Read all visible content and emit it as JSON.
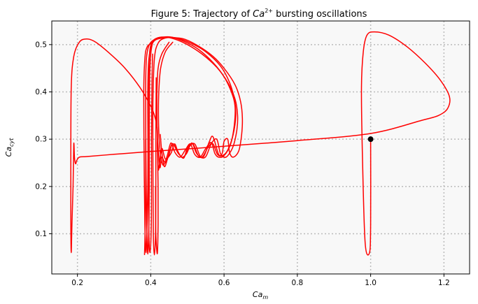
{
  "chart_data": {
    "type": "line",
    "title_prefix": "Figure 5: Trajectory of ",
    "title_math_base": "Ca",
    "title_math_sup": "2+",
    "title_suffix": " bursting oscillations",
    "xlabel_base": "Ca",
    "xlabel_sub": "m",
    "ylabel_base": "Ca",
    "ylabel_sub": "cyt",
    "xlim": [
      0.13,
      1.27
    ],
    "ylim": [
      0.015,
      0.55
    ],
    "x_ticks": [
      0.2,
      0.4,
      0.6,
      0.8,
      1.0,
      1.2
    ],
    "x_tick_labels": [
      "0.2",
      "0.4",
      "0.6",
      "0.8",
      "1.0",
      "1.2"
    ],
    "y_ticks": [
      0.1,
      0.2,
      0.3,
      0.4,
      0.5
    ],
    "y_tick_labels": [
      "0.1",
      "0.2",
      "0.3",
      "0.4",
      "0.5"
    ],
    "grid": true,
    "colors": {
      "line": "#ff0000",
      "marker": "#000000",
      "plot_bg": "#f8f8f8",
      "grid": "#bbbbbb"
    },
    "start_point": {
      "x": 1.0,
      "y": 0.3
    },
    "series": [
      {
        "segments": [
          [
            [
              1.0,
              0.3
            ],
            [
              1.0,
              0.12
            ],
            [
              0.997,
              0.06
            ],
            [
              0.985,
              0.08
            ],
            [
              0.978,
              0.25
            ],
            [
              0.975,
              0.41
            ],
            [
              0.98,
              0.485
            ],
            [
              0.99,
              0.52
            ],
            [
              1.01,
              0.527
            ],
            [
              1.05,
              0.52
            ],
            [
              1.1,
              0.495
            ],
            [
              1.15,
              0.46
            ],
            [
              1.19,
              0.425
            ],
            [
              1.215,
              0.39
            ],
            [
              1.21,
              0.365
            ],
            [
              1.185,
              0.35
            ],
            [
              1.14,
              0.34
            ],
            [
              1.0,
              0.312
            ],
            [
              0.8,
              0.297
            ],
            [
              0.6,
              0.285
            ],
            [
              0.4,
              0.274
            ],
            [
              0.3,
              0.268
            ],
            [
              0.22,
              0.263
            ]
          ],
          [
            [
              0.22,
              0.263
            ],
            [
              0.205,
              0.262
            ],
            [
              0.198,
              0.255
            ],
            [
              0.195,
              0.248
            ],
            [
              0.192,
              0.26
            ],
            [
              0.19,
              0.29
            ],
            [
              0.188,
              0.2
            ],
            [
              0.185,
              0.12
            ],
            [
              0.183,
              0.06
            ],
            [
              0.182,
              0.12
            ],
            [
              0.182,
              0.25
            ],
            [
              0.183,
              0.41
            ],
            [
              0.19,
              0.475
            ],
            [
              0.205,
              0.505
            ],
            [
              0.225,
              0.512
            ],
            [
              0.25,
              0.505
            ],
            [
              0.29,
              0.48
            ],
            [
              0.33,
              0.45
            ],
            [
              0.37,
              0.41
            ],
            [
              0.4,
              0.37
            ],
            [
              0.412,
              0.345
            ],
            [
              0.418,
              0.32
            ],
            [
              0.418,
              0.29
            ]
          ],
          [
            [
              0.418,
              0.29
            ],
            [
              0.42,
              0.245
            ],
            [
              0.422,
              0.237
            ],
            [
              0.43,
              0.28
            ],
            [
              0.44,
              0.258
            ],
            [
              0.455,
              0.27
            ],
            [
              0.465,
              0.29
            ],
            [
              0.475,
              0.272
            ],
            [
              0.49,
              0.26
            ],
            [
              0.5,
              0.282
            ],
            [
              0.515,
              0.29
            ],
            [
              0.53,
              0.265
            ],
            [
              0.545,
              0.264
            ],
            [
              0.56,
              0.295
            ],
            [
              0.57,
              0.305
            ],
            [
              0.585,
              0.268
            ],
            [
              0.595,
              0.27
            ],
            [
              0.6,
              0.295
            ],
            [
              0.61,
              0.3
            ],
            [
              0.615,
              0.272
            ],
            [
              0.625,
              0.262
            ],
            [
              0.64,
              0.275
            ],
            [
              0.648,
              0.31
            ],
            [
              0.65,
              0.345
            ],
            [
              0.645,
              0.38
            ],
            [
              0.63,
              0.415
            ],
            [
              0.6,
              0.45
            ],
            [
              0.57,
              0.475
            ],
            [
              0.53,
              0.497
            ],
            [
              0.49,
              0.512
            ],
            [
              0.45,
              0.515
            ],
            [
              0.42,
              0.512
            ],
            [
              0.405,
              0.505
            ],
            [
              0.398,
              0.49
            ],
            [
              0.395,
              0.45
            ],
            [
              0.393,
              0.33
            ],
            [
              0.392,
              0.2
            ],
            [
              0.39,
              0.12
            ],
            [
              0.387,
              0.06
            ],
            [
              0.384,
              0.12
            ],
            [
              0.382,
              0.25
            ],
            [
              0.381,
              0.4
            ],
            [
              0.384,
              0.47
            ],
            [
              0.39,
              0.495
            ],
            [
              0.405,
              0.505
            ]
          ],
          [
            [
              0.405,
              0.505
            ],
            [
              0.4,
              0.48
            ],
            [
              0.397,
              0.43
            ],
            [
              0.396,
              0.33
            ],
            [
              0.396,
              0.2
            ],
            [
              0.395,
              0.12
            ],
            [
              0.392,
              0.057
            ],
            [
              0.389,
              0.12
            ],
            [
              0.387,
              0.25
            ],
            [
              0.386,
              0.4
            ],
            [
              0.388,
              0.468
            ],
            [
              0.395,
              0.498
            ],
            [
              0.41,
              0.511
            ],
            [
              0.43,
              0.516
            ],
            [
              0.46,
              0.513
            ],
            [
              0.5,
              0.5
            ],
            [
              0.54,
              0.48
            ],
            [
              0.58,
              0.452
            ],
            [
              0.61,
              0.42
            ],
            [
              0.63,
              0.385
            ],
            [
              0.637,
              0.35
            ],
            [
              0.635,
              0.32
            ],
            [
              0.625,
              0.285
            ],
            [
              0.61,
              0.265
            ],
            [
              0.6,
              0.262
            ],
            [
              0.59,
              0.27
            ],
            [
              0.58,
              0.3
            ],
            [
              0.565,
              0.29
            ],
            [
              0.55,
              0.263
            ],
            [
              0.535,
              0.264
            ],
            [
              0.52,
              0.29
            ],
            [
              0.505,
              0.284
            ],
            [
              0.49,
              0.262
            ],
            [
              0.475,
              0.27
            ],
            [
              0.46,
              0.29
            ],
            [
              0.45,
              0.268
            ],
            [
              0.44,
              0.25
            ],
            [
              0.43,
              0.262
            ],
            [
              0.425,
              0.24
            ],
            [
              0.42,
              0.285
            ],
            [
              0.418,
              0.31
            ],
            [
              0.417,
              0.34
            ],
            [
              0.417,
              0.4
            ],
            [
              0.42,
              0.45
            ],
            [
              0.43,
              0.48
            ],
            [
              0.45,
              0.505
            ]
          ],
          [
            [
              0.405,
              0.48
            ],
            [
              0.403,
              0.4
            ],
            [
              0.402,
              0.3
            ],
            [
              0.402,
              0.18
            ],
            [
              0.401,
              0.1
            ],
            [
              0.398,
              0.06
            ],
            [
              0.395,
              0.1
            ],
            [
              0.393,
              0.25
            ],
            [
              0.392,
              0.4
            ],
            [
              0.395,
              0.47
            ],
            [
              0.405,
              0.503
            ],
            [
              0.425,
              0.514
            ],
            [
              0.455,
              0.516
            ],
            [
              0.49,
              0.507
            ],
            [
              0.53,
              0.49
            ],
            [
              0.57,
              0.462
            ],
            [
              0.6,
              0.432
            ],
            [
              0.62,
              0.4
            ],
            [
              0.63,
              0.37
            ],
            [
              0.628,
              0.33
            ],
            [
              0.618,
              0.29
            ],
            [
              0.6,
              0.265
            ],
            [
              0.585,
              0.262
            ],
            [
              0.575,
              0.27
            ],
            [
              0.565,
              0.293
            ],
            [
              0.55,
              0.28
            ],
            [
              0.535,
              0.262
            ],
            [
              0.52,
              0.268
            ],
            [
              0.508,
              0.29
            ],
            [
              0.495,
              0.278
            ],
            [
              0.48,
              0.262
            ],
            [
              0.466,
              0.272
            ],
            [
              0.455,
              0.292
            ],
            [
              0.445,
              0.265
            ],
            [
              0.435,
              0.245
            ],
            [
              0.428,
              0.26
            ],
            [
              0.423,
              0.3
            ],
            [
              0.421,
              0.35
            ],
            [
              0.422,
              0.4
            ],
            [
              0.427,
              0.45
            ],
            [
              0.44,
              0.485
            ],
            [
              0.46,
              0.505
            ]
          ],
          [
            [
              0.415,
              0.43
            ],
            [
              0.414,
              0.3
            ],
            [
              0.414,
              0.18
            ],
            [
              0.413,
              0.1
            ],
            [
              0.41,
              0.055
            ],
            [
              0.407,
              0.1
            ],
            [
              0.406,
              0.25
            ],
            [
              0.406,
              0.38
            ],
            [
              0.41,
              0.47
            ],
            [
              0.42,
              0.503
            ],
            [
              0.44,
              0.514
            ],
            [
              0.47,
              0.514
            ],
            [
              0.51,
              0.503
            ],
            [
              0.55,
              0.485
            ],
            [
              0.59,
              0.455
            ],
            [
              0.615,
              0.42
            ],
            [
              0.628,
              0.385
            ],
            [
              0.632,
              0.35
            ],
            [
              0.625,
              0.31
            ],
            [
              0.61,
              0.277
            ],
            [
              0.595,
              0.265
            ],
            [
              0.582,
              0.268
            ],
            [
              0.57,
              0.29
            ],
            [
              0.558,
              0.285
            ],
            [
              0.54,
              0.262
            ],
            [
              0.525,
              0.27
            ],
            [
              0.512,
              0.292
            ],
            [
              0.498,
              0.27
            ],
            [
              0.484,
              0.262
            ],
            [
              0.47,
              0.28
            ],
            [
              0.458,
              0.29
            ],
            [
              0.447,
              0.262
            ],
            [
              0.437,
              0.242
            ],
            [
              0.43,
              0.275
            ],
            [
              0.426,
              0.31
            ]
          ],
          [
            [
              0.418,
              0.29
            ],
            [
              0.42,
              0.2
            ],
            [
              0.42,
              0.12
            ],
            [
              0.418,
              0.058
            ],
            [
              0.414,
              0.1
            ],
            [
              0.413,
              0.2
            ]
          ],
          [
            [
              0.386,
              0.3
            ],
            [
              0.386,
              0.2
            ],
            [
              0.385,
              0.12
            ],
            [
              0.383,
              0.056
            ]
          ]
        ]
      }
    ]
  }
}
